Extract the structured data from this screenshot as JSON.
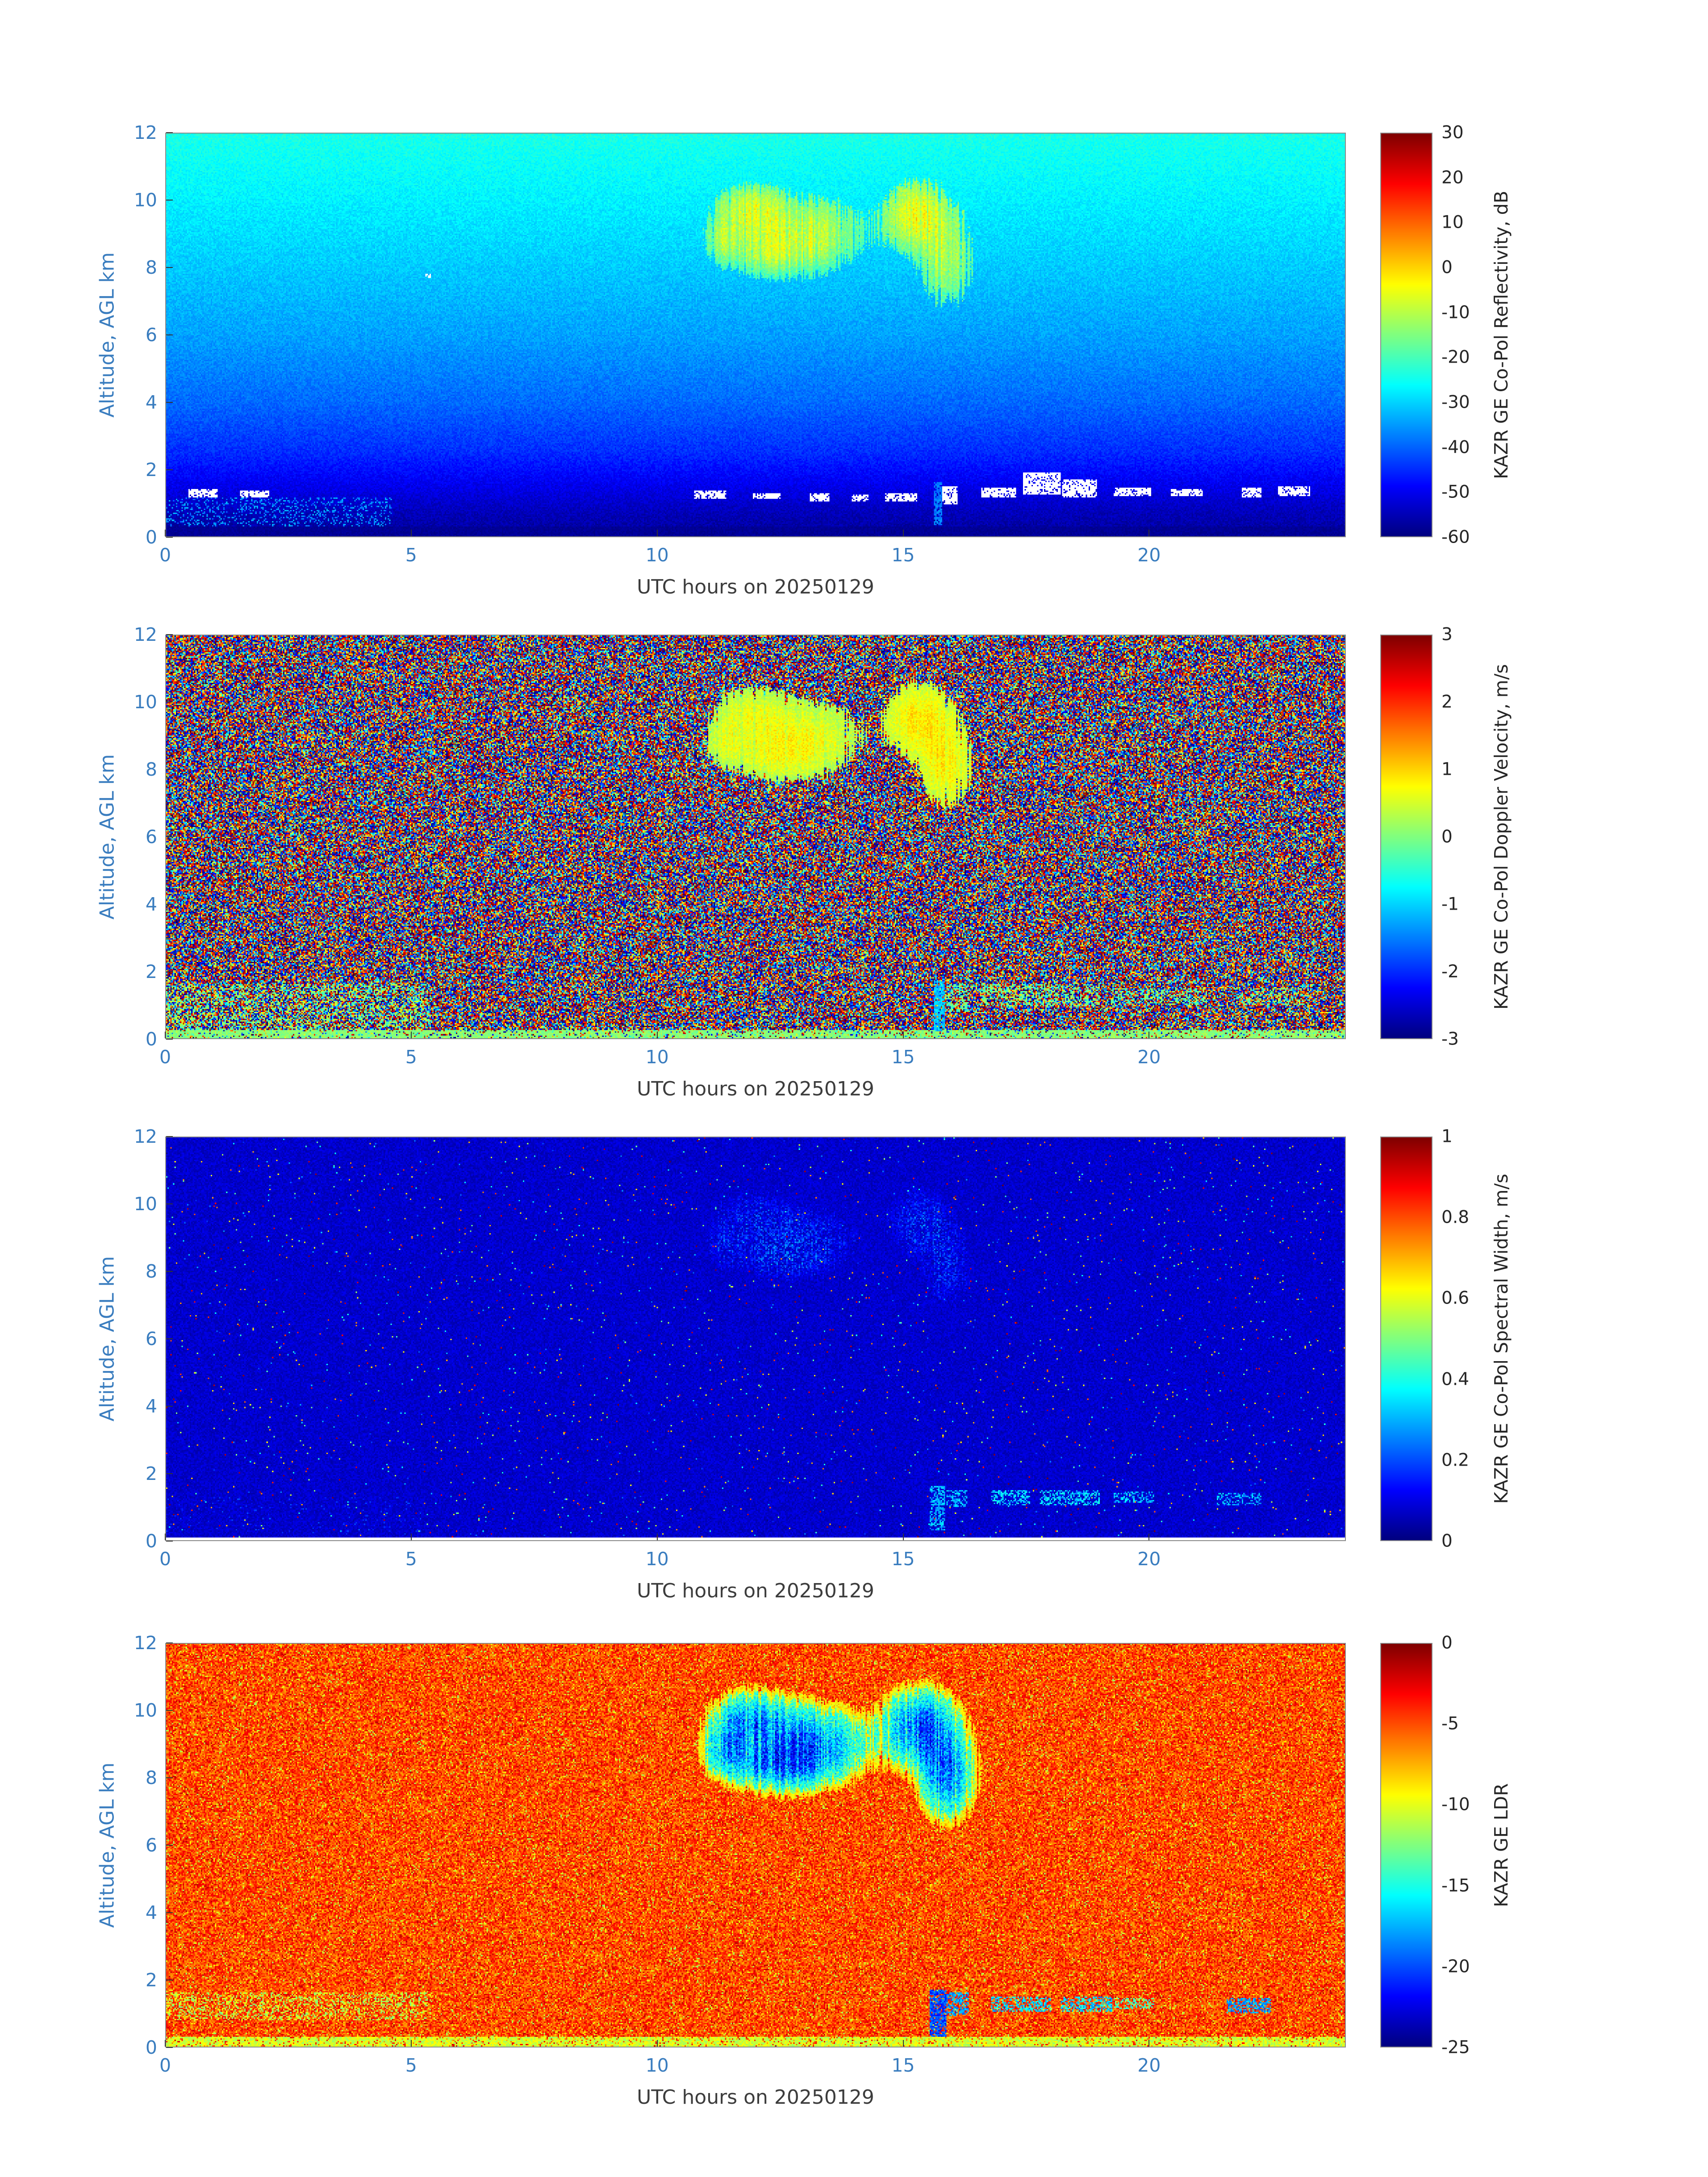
{
  "page": {
    "background": "#ffffff",
    "axis_tick_label_color": "#3a7dbf",
    "axis_label_color": "#3c3c3c",
    "colorbar_text_color": "#262626",
    "frame_color": "#8a8a8a"
  },
  "chart_data": [
    {
      "id": "reflectivity",
      "type": "heatmap",
      "xlabel": "UTC hours on 20250129",
      "ylabel": "Altitude, AGL km",
      "colorbar_label": "KAZR GE Co-Pol Reflectivity, dB",
      "colormap": "jet",
      "x_range": [
        0,
        24
      ],
      "x_ticks": [
        0,
        5,
        10,
        15,
        20
      ],
      "y_range": [
        0,
        12
      ],
      "y_ticks": [
        0,
        2,
        4,
        6,
        8,
        10,
        12
      ],
      "c_range": [
        -60,
        30
      ],
      "c_ticks": [
        30,
        20,
        10,
        0,
        -10,
        -20,
        -30,
        -40,
        -50,
        -60
      ],
      "features": [
        {
          "name": "noise_floor_gradient",
          "description": "clear-air noise floor rises with altitude",
          "values_dB_by_altitude_km": {
            "0": -57,
            "2": -48,
            "4": -39,
            "8": -31,
            "12": -24
          }
        },
        {
          "name": "cloud_echo_left",
          "hours": [
            11.2,
            14.5
          ],
          "altitude_km": [
            7.8,
            10.4
          ],
          "values_dB": [
            -20,
            -5
          ]
        },
        {
          "name": "cloud_echo_right",
          "hours": [
            14.7,
            16.4
          ],
          "altitude_km": [
            7.0,
            10.7
          ],
          "values_dB": [
            -18,
            -3
          ]
        },
        {
          "name": "boundary_layer_dashes",
          "hours": [
            10.7,
            23.3
          ],
          "altitude_km": [
            1.0,
            1.9
          ],
          "appearance": "white saturated intermittent returns"
        },
        {
          "name": "early_low_level_speckle",
          "hours": [
            0,
            4.6
          ],
          "altitude_km": [
            0.25,
            1.15
          ],
          "values_dB": [
            -41,
            -31
          ]
        },
        {
          "name": "vertical_strip",
          "hours": [
            15.6,
            15.8
          ],
          "altitude_km": [
            0.3,
            1.6
          ],
          "values_dB": [
            -42,
            -34
          ]
        }
      ],
      "render": {
        "style": "refl",
        "profile": [
          [
            0,
            -57.5
          ],
          [
            0.7,
            -55
          ],
          [
            1.5,
            -50.5
          ],
          [
            2.5,
            -45
          ],
          [
            4,
            -39.5
          ],
          [
            6,
            -34.5
          ],
          [
            8.5,
            -30
          ],
          [
            10.5,
            -26.5
          ],
          [
            12,
            -24
          ]
        ],
        "noise": 5,
        "speckle": {
          "box": [
            0,
            4.6,
            0.25,
            1.15
          ],
          "p": 0.22,
          "val": -36,
          "noise": 9
        },
        "clouds": [
          {
            "h": 11.9,
            "a": 9.7,
            "rh": 0.75,
            "ra": 0.8,
            "w": 0.9
          },
          {
            "h": 13.1,
            "a": 9.0,
            "rh": 1.1,
            "ra": 1.05,
            "w": 1.0
          },
          {
            "h": 12.4,
            "a": 8.4,
            "rh": 0.9,
            "ra": 0.7,
            "w": 0.85
          },
          {
            "h": 15.35,
            "a": 9.5,
            "rh": 0.7,
            "ra": 1.05,
            "w": 1.1
          },
          {
            "h": 15.9,
            "a": 8.1,
            "rh": 0.5,
            "ra": 1.2,
            "w": 1.05
          },
          {
            "h": 11.35,
            "a": 8.8,
            "rh": 0.4,
            "ra": 0.7,
            "w": 0.7
          }
        ],
        "cloudThresh": 0.22,
        "cloudBase": -26,
        "cloudGain": 20,
        "cloudNoise": 7,
        "altBoost": 5,
        "rightBoost": 2,
        "strips": [
          [
            15.64,
            15.8,
            0.35,
            1.6,
            -38
          ]
        ],
        "whiteSegs": [
          [
            0.45,
            1.05,
            1.15,
            1.4
          ],
          [
            1.5,
            2.1,
            1.15,
            1.35
          ],
          [
            5.28,
            5.4,
            7.68,
            7.82
          ],
          [
            10.75,
            11.4,
            1.1,
            1.35
          ],
          [
            11.95,
            12.5,
            1.1,
            1.3
          ],
          [
            13.1,
            13.5,
            1.05,
            1.3
          ],
          [
            13.95,
            14.3,
            1.05,
            1.25
          ],
          [
            14.65,
            15.3,
            1.05,
            1.3
          ],
          [
            15.8,
            16.12,
            0.95,
            1.5
          ],
          [
            16.6,
            17.3,
            1.15,
            1.45
          ],
          [
            17.45,
            18.2,
            1.25,
            1.9
          ],
          [
            18.25,
            18.95,
            1.15,
            1.7
          ],
          [
            19.3,
            20.05,
            1.2,
            1.45
          ],
          [
            20.45,
            21.1,
            1.2,
            1.4
          ],
          [
            21.9,
            22.3,
            1.15,
            1.45
          ],
          [
            22.65,
            23.3,
            1.2,
            1.5
          ]
        ],
        "whiteP": 0.8,
        "bottomAlt": 0.3,
        "bottomVal": -58
      }
    },
    {
      "id": "doppler_velocity",
      "type": "heatmap",
      "xlabel": "UTC hours on 20250129",
      "ylabel": "Altitude, AGL km",
      "colorbar_label": "KAZR GE Co-Pol Doppler Velocity, m/s",
      "colormap": "jet",
      "x_range": [
        0,
        24
      ],
      "x_ticks": [
        0,
        5,
        10,
        15,
        20
      ],
      "y_range": [
        0,
        12
      ],
      "y_ticks": [
        0,
        2,
        4,
        6,
        8,
        10,
        12
      ],
      "c_range": [
        -3,
        3
      ],
      "c_ticks": [
        3,
        2,
        1,
        0,
        -1,
        -2,
        -3
      ],
      "features": [
        {
          "name": "uncorrelated_noise",
          "description": "random doppler velocities spanning full -3 to 3 m/s range in clear air"
        },
        {
          "name": "cloud_echo",
          "hours": [
            11.2,
            16.4
          ],
          "altitude_km": [
            7.0,
            10.7
          ],
          "values_ms": [
            0.0,
            1.0
          ]
        },
        {
          "name": "boundary_layer_returns",
          "hours": [
            15.3,
            23.3
          ],
          "altitude_km": [
            0.8,
            1.7
          ],
          "values_ms": [
            -0.5,
            0.3
          ]
        },
        {
          "name": "early_low_level_returns",
          "hours": [
            0,
            5.4
          ],
          "altitude_km": [
            0.1,
            1.6
          ],
          "values_ms": [
            -0.5,
            0.5
          ]
        },
        {
          "name": "surface_line",
          "hours": [
            0,
            24
          ],
          "altitude_km": [
            0,
            0.25
          ],
          "values_ms": [
            -0.2,
            0.3
          ]
        }
      ],
      "render": {
        "style": "vel",
        "extremeFrac": 0.55,
        "dimFrac": 0.15,
        "clouds": [
          {
            "h": 11.9,
            "a": 9.7,
            "rh": 0.75,
            "ra": 0.8,
            "w": 0.9
          },
          {
            "h": 13.1,
            "a": 9.0,
            "rh": 1.1,
            "ra": 1.05,
            "w": 1.0
          },
          {
            "h": 12.4,
            "a": 8.4,
            "rh": 0.9,
            "ra": 0.7,
            "w": 0.85
          },
          {
            "h": 15.35,
            "a": 9.5,
            "rh": 0.7,
            "ra": 1.05,
            "w": 1.1
          },
          {
            "h": 15.9,
            "a": 8.1,
            "rh": 0.5,
            "ra": 1.2,
            "w": 1.05
          },
          {
            "h": 11.35,
            "a": 8.8,
            "rh": 0.4,
            "ra": 0.7,
            "w": 0.7
          }
        ],
        "cloudThresh": 0.25,
        "cloudBase": 0.05,
        "cloudGain": 0.8,
        "cloudNoise": 0.5,
        "rightBoost": 0.15,
        "segs": [
          [
            0,
            5.4,
            0.15,
            1.6,
            0.28,
            0,
            1.0
          ],
          [
            0,
            24,
            0,
            0.25,
            0.8,
            0.05,
            0.5
          ],
          [
            15.62,
            15.85,
            0.2,
            1.7,
            0.8,
            -1.1,
            0.7
          ],
          [
            15.9,
            16.35,
            0.8,
            1.6,
            0.5,
            -0.2,
            0.8
          ],
          [
            16.6,
            19.0,
            0.95,
            1.6,
            0.35,
            -0.1,
            0.8
          ],
          [
            19.2,
            21.2,
            1.0,
            1.5,
            0.3,
            -0.1,
            0.8
          ],
          [
            21.8,
            23.3,
            1.0,
            1.5,
            0.3,
            -0.1,
            0.8
          ]
        ]
      }
    },
    {
      "id": "spectral_width",
      "type": "heatmap",
      "xlabel": "UTC hours on 20250129",
      "ylabel": "Altitude, AGL km",
      "colorbar_label": "KAZR GE Co-Pol Spectral Width, m/s",
      "colormap": "jet",
      "x_range": [
        0,
        24
      ],
      "x_ticks": [
        0,
        5,
        10,
        15,
        20
      ],
      "y_range": [
        0,
        12
      ],
      "y_ticks": [
        0,
        2,
        4,
        6,
        8,
        10,
        12
      ],
      "c_range": [
        0,
        1
      ],
      "c_ticks": [
        1,
        0.8,
        0.6,
        0.4,
        0.2,
        0
      ],
      "features": [
        {
          "name": "background",
          "description": "spectral width near 0-0.1 m/s with sparse random speckle"
        },
        {
          "name": "cloud_echo",
          "hours": [
            11.5,
            16.4
          ],
          "altitude_km": [
            7.5,
            10.5
          ],
          "values_ms": [
            0.1,
            0.35
          ]
        },
        {
          "name": "boundary_layer_dashes",
          "hours": [
            15.5,
            22.3
          ],
          "altitude_km": [
            1.0,
            1.6
          ],
          "values_ms": [
            0.2,
            0.45
          ]
        }
      ],
      "render": {
        "style": "sw",
        "base": 0.04,
        "baseNoise": 0.07,
        "sparseP": 0.012,
        "clouds": [
          {
            "h": 11.9,
            "a": 9.7,
            "rh": 0.75,
            "ra": 0.8,
            "w": 0.9
          },
          {
            "h": 13.1,
            "a": 9.0,
            "rh": 1.1,
            "ra": 1.05,
            "w": 1.0
          },
          {
            "h": 12.4,
            "a": 8.4,
            "rh": 0.9,
            "ra": 0.7,
            "w": 0.85
          },
          {
            "h": 15.35,
            "a": 9.5,
            "rh": 0.7,
            "ra": 1.05,
            "w": 1.1
          },
          {
            "h": 15.9,
            "a": 8.1,
            "rh": 0.5,
            "ra": 1.2,
            "w": 1.05
          },
          {
            "h": 11.35,
            "a": 8.8,
            "rh": 0.4,
            "ra": 0.7,
            "w": 0.7
          }
        ],
        "cloudThresh": 0.3,
        "cloudP": 0.45,
        "cloudBase": 0.06,
        "cloudGain": 0.25,
        "segs": [
          [
            0,
            5.2,
            0.2,
            1.3,
            0.05,
            0.15,
            0.12
          ],
          [
            15.55,
            15.85,
            0.3,
            1.6,
            0.6,
            0.3,
            0.14
          ],
          [
            15.9,
            16.3,
            1.0,
            1.5,
            0.5,
            0.3,
            0.15
          ],
          [
            16.8,
            17.6,
            1.05,
            1.5,
            0.5,
            0.33,
            0.16
          ],
          [
            17.8,
            19.0,
            1.05,
            1.5,
            0.5,
            0.33,
            0.16
          ],
          [
            19.3,
            20.1,
            1.1,
            1.45,
            0.45,
            0.3,
            0.15
          ],
          [
            21.4,
            22.3,
            1.05,
            1.4,
            0.45,
            0.3,
            0.15
          ]
        ],
        "whiteBottomAlt": 0.1
      }
    },
    {
      "id": "ldr",
      "type": "heatmap",
      "xlabel": "UTC hours on 20250129",
      "ylabel": "Altitude, AGL km",
      "colorbar_label": "KAZR GE LDR",
      "colormap": "jet",
      "x_range": [
        0,
        24
      ],
      "x_ticks": [
        0,
        5,
        10,
        15,
        20
      ],
      "y_range": [
        0,
        12
      ],
      "y_ticks": [
        0,
        2,
        4,
        6,
        8,
        10,
        12
      ],
      "c_range": [
        -25,
        0
      ],
      "c_ticks": [
        0,
        -5,
        -10,
        -15,
        -20,
        -25
      ],
      "features": [
        {
          "name": "background_noise",
          "description": "uncorrelated LDR noise around -8 to -2"
        },
        {
          "name": "cloud_echo",
          "hours": [
            11.2,
            16.4
          ],
          "altitude_km": [
            7.0,
            10.7
          ],
          "values": [
            -23,
            -13
          ]
        },
        {
          "name": "boundary_layer_dashes",
          "hours": [
            15.5,
            22.5
          ],
          "altitude_km": [
            0.9,
            1.7
          ],
          "values": [
            -21,
            -13
          ]
        },
        {
          "name": "early_low_level_band",
          "hours": [
            0,
            5.4
          ],
          "altitude_km": [
            0.8,
            1.6
          ],
          "values": [
            -13,
            -9
          ]
        },
        {
          "name": "surface_line",
          "hours": [
            0,
            24
          ],
          "altitude_km": [
            0,
            0.3
          ],
          "values": [
            -12,
            -9
          ]
        }
      ],
      "render": {
        "style": "ldr",
        "base": -5.0,
        "noise": 4.6,
        "redP": 0.08,
        "yellowP": 0.06,
        "clouds": [
          {
            "h": 11.9,
            "a": 9.7,
            "rh": 0.75,
            "ra": 0.8,
            "w": 0.9
          },
          {
            "h": 13.1,
            "a": 9.0,
            "rh": 1.1,
            "ra": 1.05,
            "w": 1.0
          },
          {
            "h": 12.4,
            "a": 8.4,
            "rh": 0.9,
            "ra": 0.7,
            "w": 0.85
          },
          {
            "h": 15.35,
            "a": 9.5,
            "rh": 0.7,
            "ra": 1.05,
            "w": 1.1
          },
          {
            "h": 15.9,
            "a": 8.1,
            "rh": 0.5,
            "ra": 1.2,
            "w": 1.05
          },
          {
            "h": 11.35,
            "a": 8.8,
            "rh": 0.4,
            "ra": 0.7,
            "w": 0.7
          }
        ],
        "cloudThresh": 0.2,
        "cloudBase": -11,
        "cloudGain": -11,
        "cloudNoise": 5,
        "segs": [
          [
            0,
            5.4,
            0.8,
            1.6,
            0.3,
            -11,
            4
          ],
          [
            0,
            24,
            0,
            0.3,
            0.85,
            -10.5,
            3
          ],
          [
            15.55,
            15.9,
            0.3,
            1.7,
            0.8,
            -20,
            4
          ],
          [
            15.9,
            16.35,
            0.9,
            1.6,
            0.55,
            -18,
            4
          ],
          [
            16.8,
            18.0,
            1.05,
            1.5,
            0.5,
            -16.5,
            5
          ],
          [
            18.2,
            19.25,
            1.05,
            1.5,
            0.5,
            -16.5,
            5
          ],
          [
            19.3,
            20.1,
            1.1,
            1.45,
            0.4,
            -14,
            4
          ],
          [
            21.6,
            22.5,
            1.0,
            1.45,
            0.55,
            -18,
            4
          ]
        ]
      }
    }
  ]
}
